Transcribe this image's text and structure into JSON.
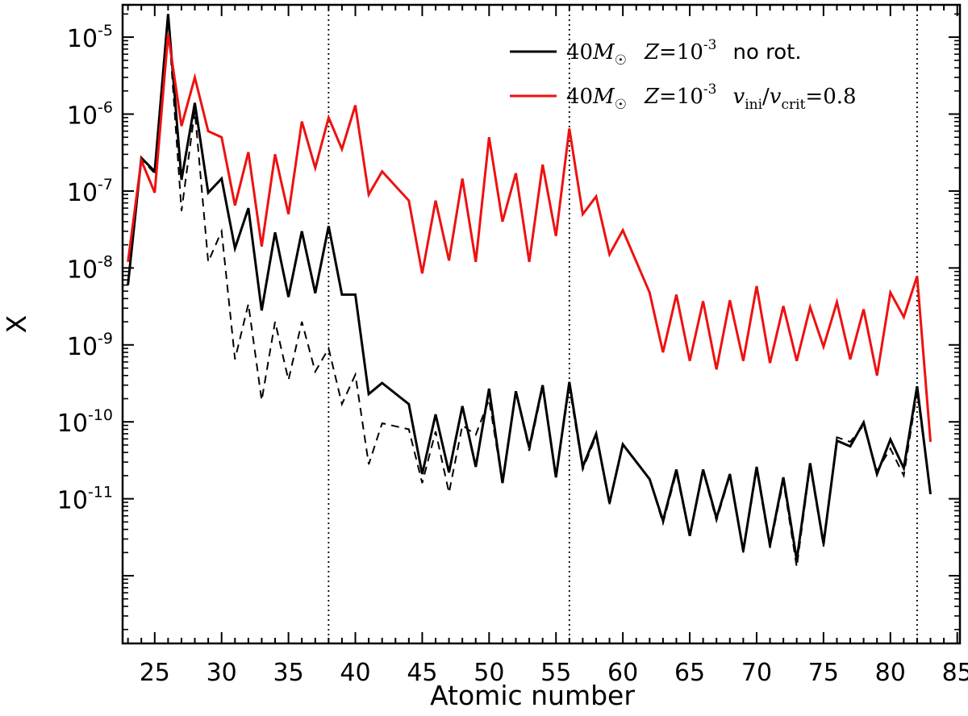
{
  "chart_data": {
    "type": "line",
    "xlabel": "Atomic number",
    "ylabel": "X",
    "xlim": [
      22.6,
      85.2
    ],
    "ylim_log10": [
      -12.88,
      -4.58
    ],
    "yscale": "log",
    "x_ticks": [
      25,
      30,
      35,
      40,
      45,
      50,
      55,
      60,
      65,
      70,
      75,
      80,
      85
    ],
    "y_ticks": [
      {
        "exp": -11,
        "base": "10",
        "sup": "-11"
      },
      {
        "exp": -10,
        "base": "10",
        "sup": "-10"
      },
      {
        "exp": -9,
        "base": "10",
        "sup": "-9"
      },
      {
        "exp": -8,
        "base": "10",
        "sup": "-8"
      },
      {
        "exp": -7,
        "base": "10",
        "sup": "-7"
      },
      {
        "exp": -6,
        "base": "10",
        "sup": "-6"
      },
      {
        "exp": -5,
        "base": "10",
        "sup": "-5"
      }
    ],
    "vlines": [
      38,
      56,
      82
    ],
    "legend_position": "top-right",
    "colors": {
      "rotating": "#ee1111",
      "no_rotation": "#000000",
      "dashed": "#000000"
    },
    "legend": [
      {
        "mass": "40",
        "sym_M": "M",
        "sub_sun": "☉",
        "Z": "Z",
        "eq": "=10",
        "zexp": "-3",
        "note": "no rot.",
        "color": "#000000"
      },
      {
        "mass": "40",
        "sym_M": "M",
        "sub_sun": "☉",
        "Z": "Z",
        "eq": "=10",
        "zexp": "-3",
        "v1": "v",
        "sub1": "ini",
        "slash": "/",
        "v2": "v",
        "sub2": "crit",
        "val": "=0.8",
        "color": "#ee1111"
      }
    ],
    "series": [
      {
        "key": "rotating",
        "style": "solid",
        "x": [
          23,
          24,
          25,
          26,
          27,
          28,
          29,
          30,
          31,
          32,
          33,
          34,
          35,
          36,
          37,
          38,
          39,
          40,
          41,
          42,
          44,
          45,
          46,
          47,
          48,
          49,
          50,
          51,
          52,
          53,
          54,
          55,
          56,
          57,
          58,
          59,
          60,
          62,
          63,
          64,
          65,
          66,
          67,
          68,
          69,
          70,
          71,
          72,
          73,
          74,
          75,
          76,
          77,
          78,
          79,
          80,
          81,
          82,
          83
        ],
        "y": [
          1.2e-08,
          2.5e-07,
          9.5e-08,
          1.1e-05,
          7e-07,
          3e-06,
          6e-07,
          5e-07,
          6.5e-08,
          3.2e-07,
          1.9e-08,
          3e-07,
          5e-08,
          8e-07,
          2e-07,
          9e-07,
          3.5e-07,
          1.3e-06,
          9e-08,
          1.8e-07,
          7.5e-08,
          8.5e-09,
          7.5e-08,
          1.25e-08,
          1.45e-07,
          1.2e-08,
          5e-07,
          4e-08,
          1.7e-07,
          1.2e-08,
          2.2e-07,
          2.6e-08,
          6.5e-07,
          5e-08,
          8.5e-08,
          1.5e-08,
          3.1e-08,
          4.8e-09,
          8e-10,
          4.5e-09,
          6.2e-10,
          3.7e-09,
          4.8e-10,
          3.8e-09,
          6.2e-10,
          5.8e-09,
          5.8e-10,
          3.2e-09,
          6.2e-10,
          3.1e-09,
          9.5e-10,
          3.6e-09,
          6.5e-10,
          2.9e-09,
          4e-10,
          4.8e-09,
          2.3e-09,
          7.8e-09,
          5.5e-11
        ]
      },
      {
        "key": "no_rotation",
        "style": "solid",
        "x": [
          23,
          24,
          25,
          26,
          27,
          28,
          29,
          30,
          31,
          32,
          33,
          34,
          35,
          36,
          37,
          38,
          39,
          40,
          41,
          42,
          44,
          45,
          46,
          47,
          48,
          49,
          50,
          51,
          52,
          53,
          54,
          55,
          56,
          57,
          58,
          59,
          60,
          62,
          63,
          64,
          65,
          66,
          67,
          68,
          69,
          70,
          71,
          72,
          73,
          74,
          75,
          76,
          77,
          78,
          79,
          80,
          81,
          82,
          83
        ],
        "y": [
          6e-09,
          2.7e-07,
          1.8e-07,
          2e-05,
          1.4e-07,
          1.4e-06,
          9.5e-08,
          1.45e-07,
          1.8e-08,
          6e-08,
          2.8e-09,
          2.9e-08,
          4.2e-09,
          3e-08,
          4.7e-09,
          3.5e-08,
          4.5e-09,
          4.5e-09,
          2.3e-10,
          3.2e-10,
          1.7e-10,
          2.1e-11,
          1.25e-10,
          2.2e-11,
          1.6e-10,
          2.6e-11,
          2.7e-10,
          1.6e-11,
          2.5e-10,
          4.6e-11,
          3e-10,
          1.9e-11,
          3.3e-10,
          2.6e-11,
          7e-11,
          8.8e-12,
          5.1e-11,
          1.8e-11,
          5.2e-12,
          2.4e-11,
          3.3e-12,
          2.4e-11,
          5.6e-12,
          2.1e-11,
          2.1e-12,
          2.6e-11,
          2.5e-12,
          1.9e-11,
          1.6e-12,
          2.9e-11,
          2.6e-12,
          5.7e-11,
          4.8e-11,
          9.8e-11,
          2.1e-11,
          5.9e-11,
          2.5e-11,
          2.9e-10,
          1.15e-11
        ]
      },
      {
        "key": "dashed",
        "style": "dashed",
        "x": [
          23,
          24,
          25,
          26,
          27,
          28,
          29,
          30,
          31,
          32,
          33,
          34,
          35,
          36,
          37,
          38,
          39,
          40,
          41,
          42,
          44,
          45,
          46,
          47,
          48,
          49,
          50,
          51,
          52,
          53,
          54,
          55,
          56,
          57,
          58,
          59,
          60,
          62,
          63,
          64,
          65,
          66,
          67,
          68,
          69,
          70,
          71,
          72,
          73,
          74,
          75,
          76,
          77,
          78,
          79,
          80,
          81,
          82,
          83
        ],
        "y": [
          6e-09,
          2.6e-07,
          1.7e-07,
          1.8e-05,
          5.5e-08,
          1.1e-06,
          1.2e-08,
          3e-08,
          6.5e-10,
          3.4e-09,
          1.9e-10,
          2e-09,
          3.5e-10,
          2e-09,
          4.5e-10,
          9e-10,
          1.7e-10,
          4.1e-10,
          2.8e-11,
          9.6e-11,
          8e-11,
          1.6e-11,
          7.5e-11,
          1.2e-11,
          9e-11,
          6.8e-11,
          1.95e-10,
          1.6e-11,
          2.5e-10,
          4.2e-11,
          2.8e-10,
          1.9e-11,
          2.9e-10,
          2.4e-11,
          6.5e-11,
          8.5e-12,
          5e-11,
          1.8e-11,
          4.8e-12,
          2.2e-11,
          3.2e-12,
          2.3e-11,
          5.2e-12,
          2e-11,
          2e-12,
          2.4e-11,
          2.3e-12,
          1.7e-11,
          1.3e-12,
          2.7e-11,
          2.4e-12,
          6.3e-11,
          5.5e-11,
          9e-11,
          2.3e-11,
          4.5e-11,
          2e-11,
          2.5e-10,
          1.15e-11
        ]
      }
    ]
  }
}
